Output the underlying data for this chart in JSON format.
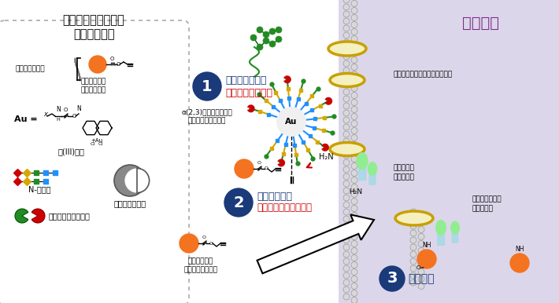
{
  "title": "体内タギング治療に\n使用する分子",
  "cancer_cell_label": "がん細胞",
  "step1_title1": "ターゲティング",
  "step1_title2": "糖鎖パターン認識",
  "step1_sub": "α(2,3)シアル酸を含む\n糖鎖付加アルブミン",
  "step2_title1": "体内タギング",
  "step2_title2": "体内遷移金属触媒反応",
  "step3_title": "薬効発現",
  "cell_surface_glycan": "細胞表面の糖鎖認識タンパク質",
  "cell_surface_protein": "細胞表面の\nタンパク質",
  "tagged_protein": "タギングされた\nタンパク質",
  "probe_label": "プロバルギル\nエステルプローブ",
  "antican_label": "抗がん活性物質",
  "propargy_label": "プロバルギル\nエステル部位",
  "au_catalyst_label": "金(III)触媒",
  "ntype_label": "N-型糖鎖",
  "albumin_label": "血清アルブミン",
  "recognize_label": "糖鎖を認識する部分",
  "bg_color": "#ffffff",
  "cancer_cell_bg": "#dcd6ea",
  "step_circle_color": "#1a3a7a",
  "orange": "#f47320",
  "blue_text": "#1a3a7a",
  "red_text": "#cc0000",
  "purple_text": "#7b2d8b",
  "green_color": "#228B22",
  "yellow_color": "#d4a800",
  "blue_color": "#1E90FF",
  "red_color": "#cc0000",
  "mem_bead_color": "#d8d8d8",
  "mem_bead_edge": "#999999",
  "protein_face": "#f5f0c0",
  "protein_edge": "#c8a000"
}
